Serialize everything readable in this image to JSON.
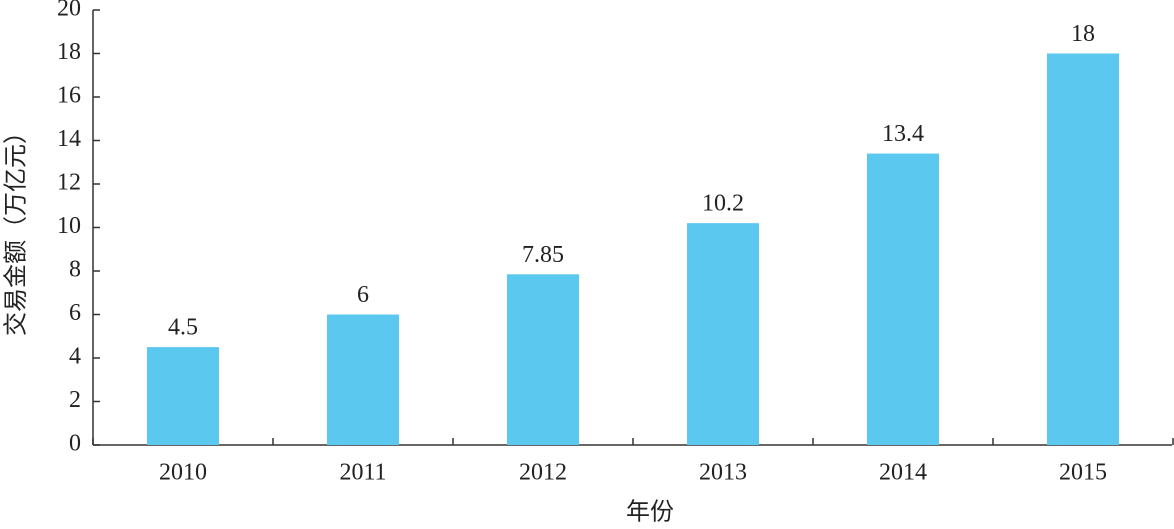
{
  "chart_data": {
    "type": "bar",
    "x_label": "年份",
    "y_label": "交易金额（万亿元）",
    "categories": [
      "2010",
      "2011",
      "2012",
      "2013",
      "2014",
      "2015"
    ],
    "values": [
      4.5,
      6,
      7.85,
      10.2,
      13.4,
      18
    ],
    "color": "#5bc8f0",
    "ylim": [
      0,
      20
    ],
    "yticks": [
      0,
      2,
      4,
      6,
      8,
      10,
      12,
      14,
      16,
      18,
      20
    ],
    "grid": false,
    "data_labels": true
  }
}
